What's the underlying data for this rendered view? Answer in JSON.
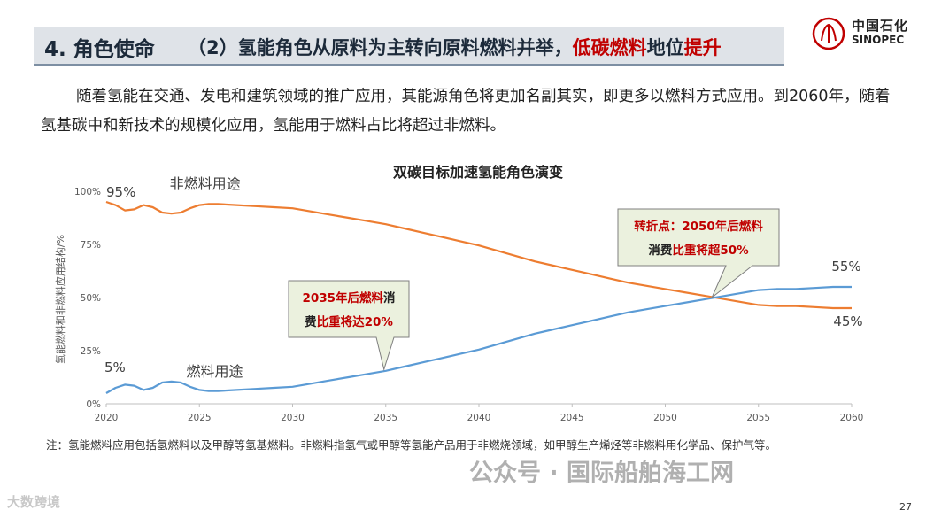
{
  "header": {
    "section": "4. 角色使命",
    "title_part1": "（2）氢能角色从原料为主转向原料燃料并举，",
    "title_hl1": "低碳燃料",
    "title_part2": "地位",
    "title_hl2": "提升"
  },
  "logo": {
    "cn": "中国石化",
    "en": "SINOPEC"
  },
  "intro_text": "随着氢能在交通、发电和建筑领域的推广应用，其能源角色将更加名副其实，即更多以燃料方式应用。到2060年，随着氢基碳中和新技术的规模化应用，氢能用于燃料占比将超过非燃料。",
  "chart_data": {
    "type": "line",
    "title": "双碳目标加速氢能角色演变",
    "ylabel": "氢能燃料和非燃料应用结构/%",
    "xlabel": "",
    "x_ticks": [
      "2020",
      "2025",
      "2030",
      "2035",
      "2040",
      "2045",
      "2050",
      "2055",
      "2060"
    ],
    "y_ticks": [
      "0%",
      "25%",
      "50%",
      "75%",
      "100%"
    ],
    "xlim": [
      2020,
      2060
    ],
    "ylim": [
      0,
      100
    ],
    "grid": false,
    "series": [
      {
        "name": "非燃料用途",
        "color": "#ed7d31",
        "x": [
          2020,
          2020.5,
          2021,
          2021.5,
          2022,
          2022.5,
          2023,
          2023.5,
          2024,
          2024.5,
          2025,
          2025.5,
          2026,
          2027,
          2028,
          2029,
          2030,
          2031,
          2032,
          2033,
          2034,
          2035,
          2036,
          2037,
          2038,
          2039,
          2040,
          2041,
          2042,
          2043,
          2044,
          2045,
          2046,
          2047,
          2048,
          2049,
          2050,
          2051,
          2052,
          2053,
          2054,
          2055,
          2056,
          2057,
          2058,
          2059,
          2060
        ],
        "values": [
          95,
          93.5,
          91,
          91.5,
          93.5,
          92.5,
          90,
          89.5,
          90,
          92,
          93.5,
          94,
          94,
          93.5,
          93,
          92.5,
          92,
          90.5,
          89,
          87.5,
          86,
          84.5,
          82.5,
          80.5,
          78.5,
          76.5,
          74.5,
          72,
          69.5,
          67,
          65,
          63,
          61,
          59,
          57,
          55.5,
          54,
          52.5,
          51,
          49.5,
          48,
          46.5,
          46,
          46,
          45.5,
          45,
          45
        ]
      },
      {
        "name": "燃料用途",
        "color": "#5b9bd5",
        "x": [
          2020,
          2020.5,
          2021,
          2021.5,
          2022,
          2022.5,
          2023,
          2023.5,
          2024,
          2024.5,
          2025,
          2025.5,
          2026,
          2027,
          2028,
          2029,
          2030,
          2031,
          2032,
          2033,
          2034,
          2035,
          2036,
          2037,
          2038,
          2039,
          2040,
          2041,
          2042,
          2043,
          2044,
          2045,
          2046,
          2047,
          2048,
          2049,
          2050,
          2051,
          2052,
          2053,
          2054,
          2055,
          2056,
          2057,
          2058,
          2059,
          2060
        ],
        "values": [
          5,
          7.5,
          9,
          8.5,
          6.5,
          7.5,
          10,
          10.5,
          10,
          8,
          6.5,
          6,
          6,
          6.5,
          7,
          7.5,
          8,
          9.5,
          11,
          12.5,
          14,
          15.5,
          17.5,
          19.5,
          21.5,
          23.5,
          25.5,
          28,
          30.5,
          33,
          35,
          37,
          39,
          41,
          43,
          44.5,
          46,
          47.5,
          49,
          50.5,
          52,
          53.5,
          54,
          54,
          54.5,
          55,
          55
        ]
      }
    ],
    "data_labels": [
      {
        "text": "95%",
        "x": 2020,
        "y": 95
      },
      {
        "text": "5%",
        "x": 2020,
        "y": 5
      },
      {
        "text": "55%",
        "x": 2060,
        "y": 55
      },
      {
        "text": "45%",
        "x": 2060,
        "y": 45
      }
    ],
    "series_labels": [
      {
        "text": "非燃料用途",
        "series": 0
      },
      {
        "text": "燃料用途",
        "series": 1
      }
    ],
    "callouts": [
      {
        "line1_a": "2035年后",
        "line1_b": "燃料",
        "line1_c": "消",
        "line2_a": "费",
        "line2_b": "比重将达20%",
        "anchor_x": 2035,
        "anchor_y": 17
      },
      {
        "line1_a": "转折点：2050年后",
        "line1_b": "燃料",
        "line2_a": "消费",
        "line2_b": "比重将超50%",
        "anchor_x": 2052.5,
        "anchor_y": 50
      }
    ],
    "colors": {
      "callout_bg": "#ebf1de",
      "callout_border": "#7f7f7f",
      "callout_red": "#c00000"
    }
  },
  "note": "注：氢能燃料应用包括氢燃料以及甲醇等氢基燃料。非燃料指氢气或甲醇等氢能产品用于非燃烧领域，如甲醇生产烯烃等非燃料用化学品、保护气等。",
  "watermarks": {
    "left": "大数跨境",
    "right": "公众号 · 国际船舶海工网"
  },
  "page_number": "27"
}
